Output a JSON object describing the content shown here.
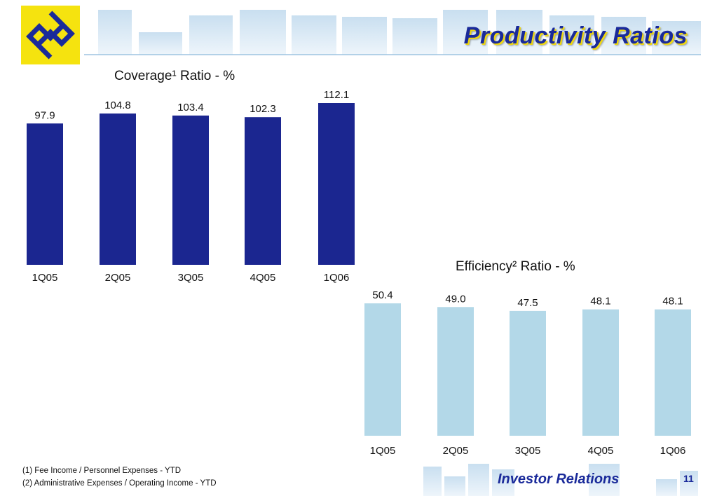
{
  "header": {
    "title": "Productivity Ratios"
  },
  "footer": {
    "notes": [
      "(1) Fee Income / Personnel Expenses - YTD",
      "(2) Administrative Expenses / Operating Income - YTD"
    ],
    "brand": "Investor Relations",
    "page_number": "11"
  },
  "colors": {
    "coverage_bar": "#1b2690",
    "efficiency_bar": "#b3d8e8",
    "title_blue": "#1a2a9a",
    "logo_yellow": "#f5e30f"
  },
  "chart_data": [
    {
      "type": "bar",
      "title": "Coverage¹ Ratio - %",
      "categories": [
        "1Q05",
        "2Q05",
        "3Q05",
        "4Q05",
        "1Q06"
      ],
      "values": [
        97.9,
        104.8,
        103.4,
        102.3,
        112.1
      ],
      "value_labels": [
        "97.9",
        "104.8",
        "103.4",
        "102.3",
        "112.1"
      ]
    },
    {
      "type": "bar",
      "title": "Efficiency² Ratio - %",
      "categories": [
        "1Q05",
        "2Q05",
        "3Q05",
        "4Q05",
        "1Q06"
      ],
      "values": [
        50.4,
        49.0,
        47.5,
        48.1,
        48.1
      ],
      "value_labels": [
        "50.4",
        "49.0",
        "47.5",
        "48.1",
        "48.1"
      ]
    }
  ]
}
